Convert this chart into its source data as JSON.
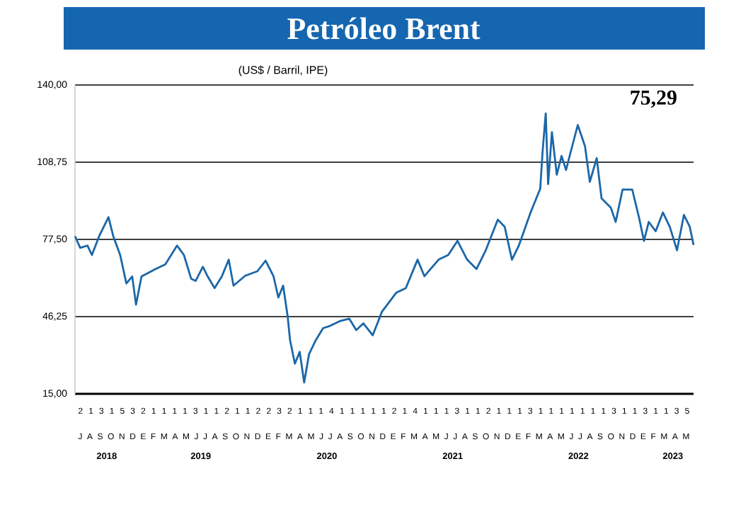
{
  "chart_data": {
    "type": "line",
    "title": "Petróleo Brent",
    "subtitle": "(US$ / Barril, IPE)",
    "color": "#1b67a8",
    "grid": "y",
    "annotations": [
      "75,29",
      "2 1 3 1 5 3 2 1 1 1 1 3 1 1 2 1 1 2 2 3 2 1 1 1 4 1 1 1 1 1 2 1 4 1 1 1 3 1 1 2 1 1 1 3 1 1 1 1 1 1 1 3 1 1 3 1 1 3 5",
      "J A S O N D E F M A M J J A S O N D E F M A M J J A S O N D E F M A M J J A S O N D E F M A M J J A S O N D E F M A M"
    ],
    "x": [
      "2018-07-01",
      "2018-07-16",
      "2018-08-06",
      "2018-08-19",
      "2018-09-09",
      "2018-10-06",
      "2018-10-20",
      "2018-11-09",
      "2018-11-27",
      "2018-12-14",
      "2018-12-25",
      "2019-01-10",
      "2019-02-20",
      "2019-03-20",
      "2019-04-23",
      "2019-05-13",
      "2019-06-03",
      "2019-06-16",
      "2019-07-07",
      "2019-07-21",
      "2019-08-10",
      "2019-08-31",
      "2019-09-20",
      "2019-10-04",
      "2019-11-07",
      "2019-12-12",
      "2020-01-05",
      "2020-01-28",
      "2020-02-11",
      "2020-02-25",
      "2020-03-09",
      "2020-03-16",
      "2020-03-30",
      "2020-04-13",
      "2020-04-26",
      "2020-05-10",
      "2020-05-30",
      "2020-06-20",
      "2020-07-10",
      "2020-08-07",
      "2020-09-04",
      "2020-09-24",
      "2020-10-15",
      "2020-11-11",
      "2020-12-08",
      "2021-01-18",
      "2021-02-15",
      "2021-03-21",
      "2021-04-10",
      "2021-05-21",
      "2021-06-18",
      "2021-07-15",
      "2021-08-12",
      "2021-09-08",
      "2021-10-05",
      "2021-11-09",
      "2021-11-29",
      "2021-12-20",
      "2022-01-09",
      "2022-02-12",
      "2022-03-12",
      "2022-03-19",
      "2022-03-28",
      "2022-04-04",
      "2022-04-15",
      "2022-04-29",
      "2022-05-13",
      "2022-05-26",
      "2022-06-09",
      "2022-06-29",
      "2022-07-20",
      "2022-08-03",
      "2022-08-23",
      "2022-09-06",
      "2022-10-03",
      "2022-10-17",
      "2022-11-06",
      "2022-12-04",
      "2022-12-24",
      "2023-01-07",
      "2023-01-21",
      "2023-02-10",
      "2023-03-03",
      "2023-03-23",
      "2023-04-13",
      "2023-05-03",
      "2023-05-20",
      "2023-05-31"
    ],
    "values": [
      78.8,
      74.1,
      75,
      71.2,
      78.8,
      86.5,
      78.8,
      71.2,
      59.7,
      62.5,
      51.1,
      62.5,
      65.5,
      67.4,
      75,
      71.2,
      61.6,
      60.7,
      66.4,
      62.5,
      57.8,
      62.5,
      69.3,
      58.8,
      62.8,
      64.6,
      68.9,
      62.6,
      54,
      58.8,
      46.4,
      36.8,
      27.2,
      32,
      19.6,
      31,
      36.8,
      41.6,
      42.5,
      44.4,
      45.4,
      40.8,
      43.5,
      38.7,
      48.3,
      55.9,
      57.8,
      69.3,
      62.6,
      69.3,
      71.2,
      76.9,
      69.3,
      65.5,
      73.1,
      85.5,
      82.6,
      69.3,
      75,
      88.4,
      98,
      113.2,
      128.5,
      99.9,
      120.9,
      103.7,
      111.3,
      105.6,
      113.2,
      123.8,
      115.2,
      100.8,
      110.4,
      94.1,
      90.3,
      84.6,
      97.7,
      97.7,
      86.2,
      76.9,
      84.6,
      80.8,
      88.4,
      82.6,
      73.1,
      87.4,
      82.6,
      75.3
    ],
    "xlim": [
      "2018-07-01",
      "2023-05-31"
    ],
    "ylim": [
      15,
      140
    ],
    "yticks": [
      {
        "value": 15,
        "label": "15,00"
      },
      {
        "value": 46.25,
        "label": "46,25"
      },
      {
        "value": 77.5,
        "label": "77,50"
      },
      {
        "value": 108.75,
        "label": "108,75"
      },
      {
        "value": 140,
        "label": "140,00"
      }
    ],
    "xticks": [
      {
        "value": "2018-10-01",
        "label": "2018"
      },
      {
        "value": "2019-07-01",
        "label": "2019"
      },
      {
        "value": "2020-07-01",
        "label": "2020"
      },
      {
        "value": "2021-07-01",
        "label": "2021"
      },
      {
        "value": "2022-07-01",
        "label": "2022"
      },
      {
        "value": "2023-04-01",
        "label": "2023"
      }
    ]
  }
}
